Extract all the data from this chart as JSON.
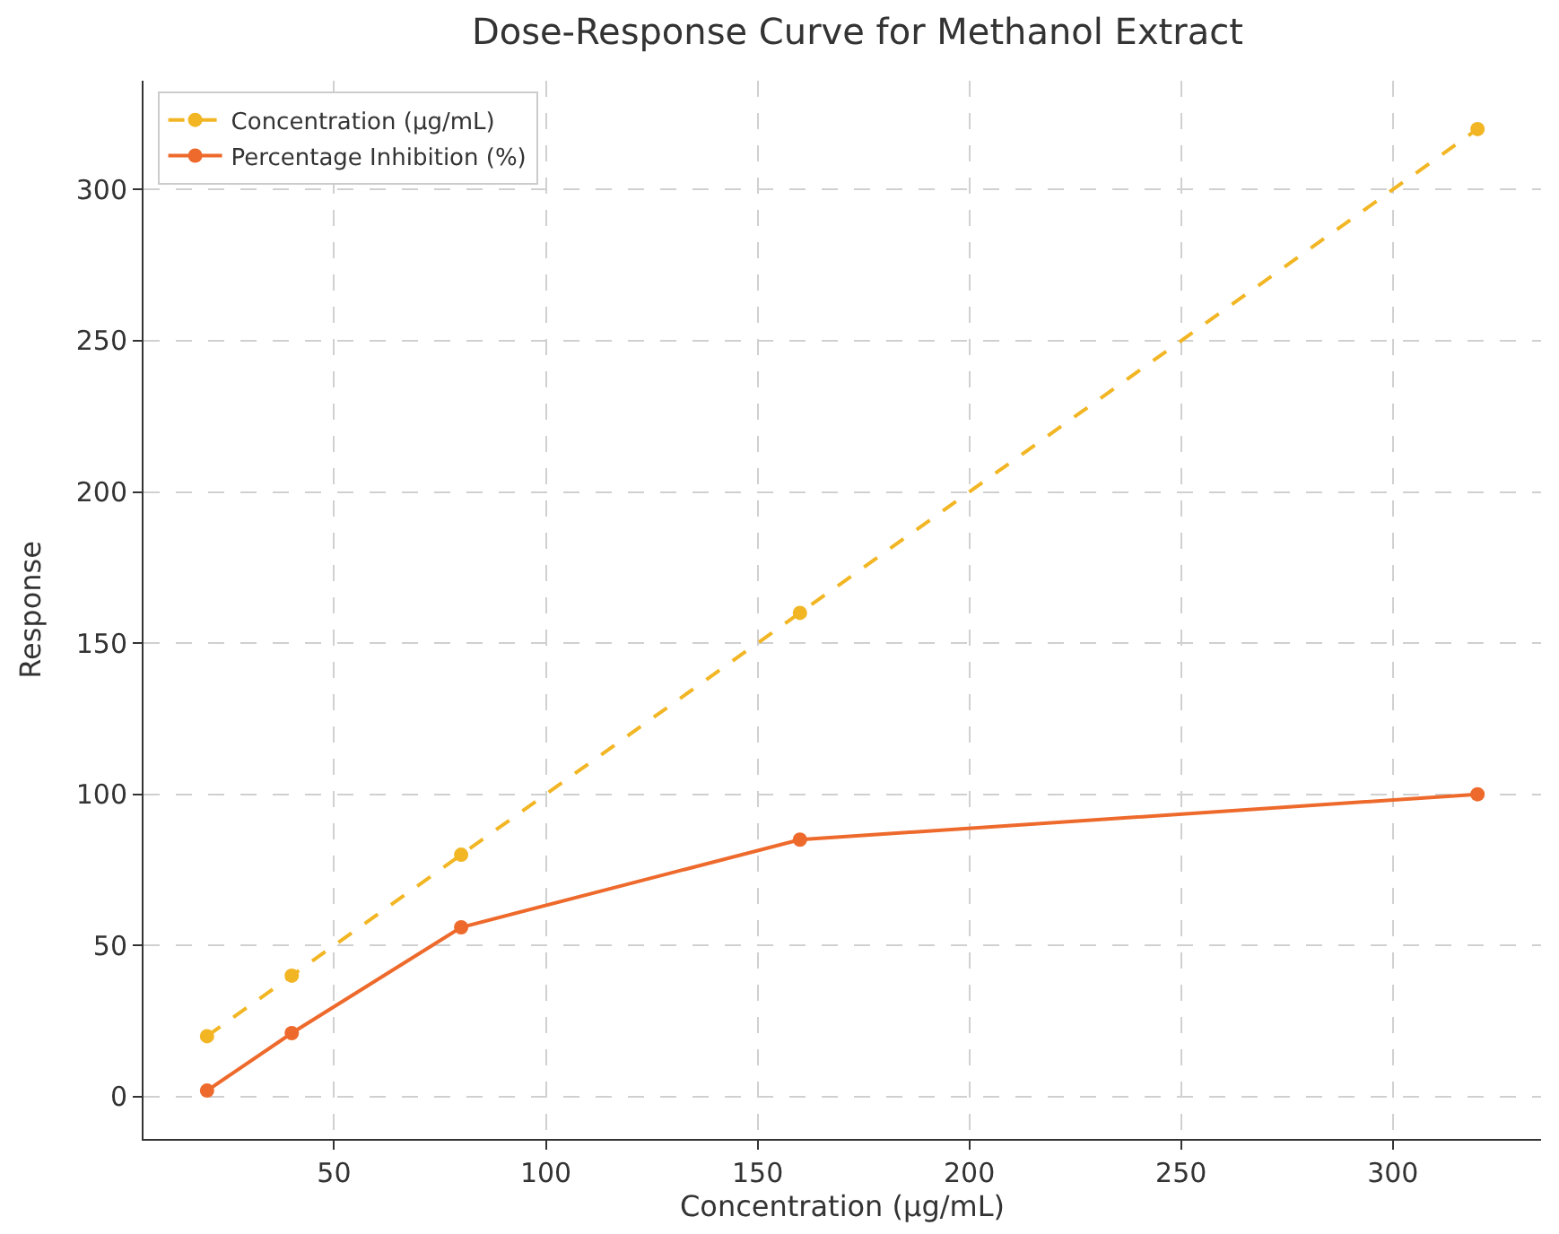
{
  "chart_data": {
    "type": "line",
    "title": "Dose-Response Curve for Methanol Extract",
    "xlabel": "Concentration (µg/mL)",
    "ylabel": "Response",
    "x": [
      20,
      40,
      80,
      160,
      320
    ],
    "series": [
      {
        "name": "Concentration (µg/mL)",
        "color": "#f2b624",
        "values": [
          20,
          40,
          80,
          160,
          320
        ],
        "line_style": "dashed"
      },
      {
        "name": "Percentage Inhibition (%)",
        "color": "#ee6a2c",
        "values": [
          2,
          21,
          56,
          85,
          100
        ],
        "line_style": "solid"
      }
    ],
    "xlim": [
      5,
      335
    ],
    "xticks": [
      50,
      100,
      150,
      200,
      250,
      300
    ],
    "ylim": [
      -14,
      336
    ],
    "yticks": [
      0,
      50,
      100,
      150,
      200,
      250,
      300
    ],
    "grid": true,
    "legend": "top left",
    "marker": "circle"
  }
}
